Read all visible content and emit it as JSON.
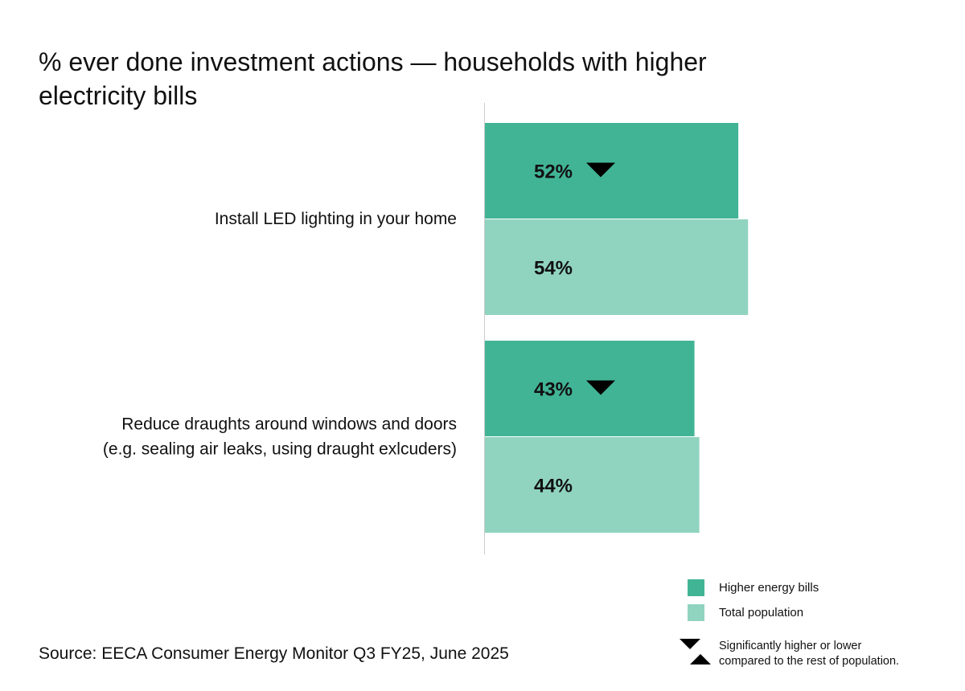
{
  "chart_data": {
    "type": "bar",
    "orientation": "horizontal",
    "title": "% ever done investment actions — households with higher electricity bills",
    "categories": [
      [
        "Install LED lighting in your home"
      ],
      [
        "Reduce draughts around windows and doors",
        "(e.g. sealing air leaks, using draught exlcuders)"
      ]
    ],
    "series": [
      {
        "name": "Higher energy bills",
        "color": "#42b496",
        "values": [
          52,
          43
        ],
        "labels": [
          "52%",
          "43%"
        ],
        "significance": [
          "lower",
          "lower"
        ]
      },
      {
        "name": "Total population",
        "color": "#90d4bf",
        "values": [
          54,
          44
        ],
        "labels": [
          "54%",
          "44%"
        ],
        "significance": [
          null,
          null
        ]
      }
    ],
    "xlim": [
      0,
      100
    ],
    "grid": false,
    "legend_position": "bottom-right"
  },
  "legend": {
    "significance_line1": "Significantly higher or lower",
    "significance_line2": "compared to the rest of population."
  },
  "source": "Source: EECA Consumer Energy Monitor Q3 FY25, June 2025",
  "icons": {
    "lower": "triangle-down-icon",
    "higher": "triangle-up-icon"
  }
}
